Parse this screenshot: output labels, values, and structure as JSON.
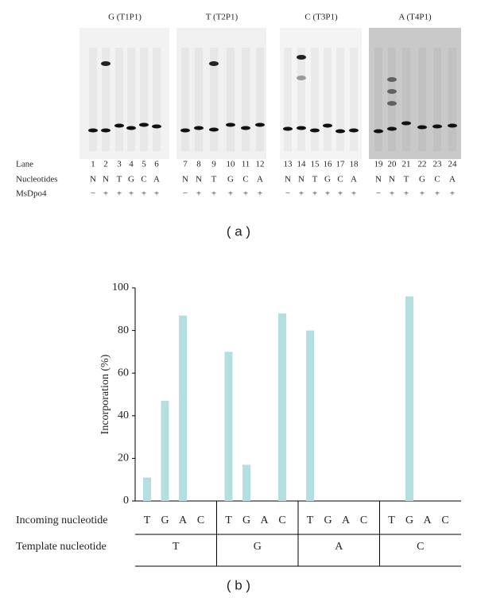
{
  "gel": {
    "panels": [
      "G (T1P1)",
      "T (T2P1)",
      "C (T3P1)",
      "A (T4P1)"
    ],
    "row_labels": [
      "Lane",
      "Nucleotides",
      "MsDpo4"
    ],
    "lanes": [
      "1",
      "2",
      "3",
      "4",
      "5",
      "6",
      "7",
      "8",
      "9",
      "10",
      "11",
      "12",
      "13",
      "14",
      "15",
      "16",
      "17",
      "18",
      "19",
      "20",
      "21",
      "22",
      "23",
      "24"
    ],
    "nucleotides": [
      "N",
      "N",
      "T",
      "G",
      "C",
      "A",
      "N",
      "N",
      "T",
      "G",
      "C",
      "A",
      "N",
      "N",
      "T",
      "G",
      "C",
      "A",
      "N",
      "N",
      "T",
      "G",
      "C",
      "A"
    ],
    "enzyme": [
      "−",
      "+",
      "+",
      "+",
      "+",
      "+",
      "−",
      "+",
      "+",
      "+",
      "+",
      "+",
      "−",
      "+",
      "+",
      "+",
      "+",
      "+",
      "−",
      "+",
      "+",
      "+",
      "+",
      "+"
    ],
    "caption": "( a )"
  },
  "chart_data": {
    "type": "bar",
    "ylabel": "Incorporation (%)",
    "ylim": [
      0,
      100
    ],
    "yticks": [
      0,
      20,
      40,
      60,
      80,
      100
    ],
    "color": "#b3dfe0",
    "row_labels": [
      "Incoming nucleotide",
      "Template nucleotide"
    ],
    "groups": [
      {
        "name": "T",
        "categories": [
          "T",
          "G",
          "A",
          "C"
        ],
        "values": [
          11,
          47,
          87,
          0
        ]
      },
      {
        "name": "G",
        "categories": [
          "T",
          "G",
          "A",
          "C"
        ],
        "values": [
          70,
          17,
          0,
          88
        ]
      },
      {
        "name": "A",
        "categories": [
          "T",
          "G",
          "A",
          "C"
        ],
        "values": [
          80,
          0,
          0,
          0
        ]
      },
      {
        "name": "C",
        "categories": [
          "T",
          "G",
          "A",
          "C"
        ],
        "values": [
          0,
          96,
          0,
          0
        ]
      }
    ],
    "caption": "( b )"
  }
}
